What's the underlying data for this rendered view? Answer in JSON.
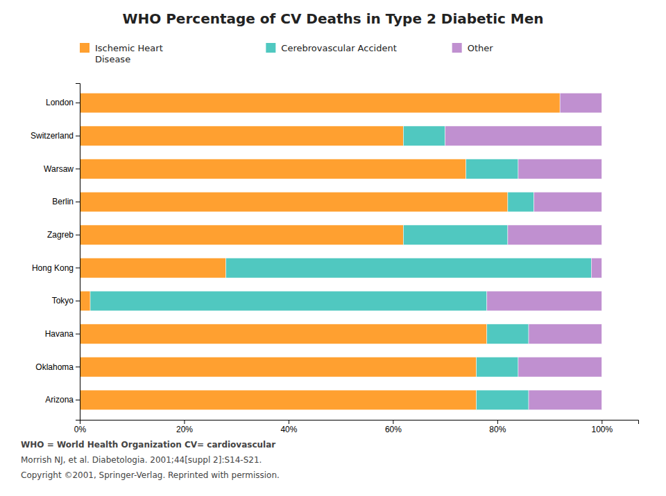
{
  "chart_data": {
    "type": "bar",
    "orientation": "horizontal",
    "stacked": true,
    "title": "WHO Percentage of CV Deaths in Type 2 Diabetic Men",
    "categories": [
      "Arizona",
      "Oklahoma",
      "Havana",
      "Tokyo",
      "Hong Kong",
      "Zagreb",
      "Berlin",
      "Warsaw",
      "Switzerland",
      "London"
    ],
    "series": [
      {
        "name": "Ischemic Heart\nDisease",
        "color": "#FFA030",
        "values": [
          76,
          76,
          78,
          2,
          28,
          62,
          82,
          74,
          62,
          92
        ]
      },
      {
        "name": "Cerebrovascular Accident",
        "color": "#50C8C0",
        "values": [
          10,
          8,
          8,
          76,
          70,
          20,
          5,
          10,
          8,
          0
        ]
      },
      {
        "name": "Other",
        "color": "#C090D0",
        "values": [
          14,
          16,
          14,
          22,
          2,
          18,
          13,
          16,
          30,
          8
        ]
      }
    ],
    "xlim": [
      0,
      107
    ],
    "xticks": [
      {
        "value": 0,
        "label": "0%"
      },
      {
        "value": 20,
        "label": "20%"
      },
      {
        "value": 40,
        "label": "40%"
      },
      {
        "value": 60,
        "label": "60%"
      },
      {
        "value": 80,
        "label": "80%"
      },
      {
        "value": 100,
        "label": "100%"
      }
    ],
    "grid": false,
    "legend": "top",
    "annotations": [
      "WHO = World Health Organization   CV= cardiovascular",
      "Morrish NJ, et al. Diabetologia. 2001;44[suppl 2]:S14-S21.",
      "Copyright ©2001, Springer-Verlag. Reprinted with permission."
    ]
  }
}
